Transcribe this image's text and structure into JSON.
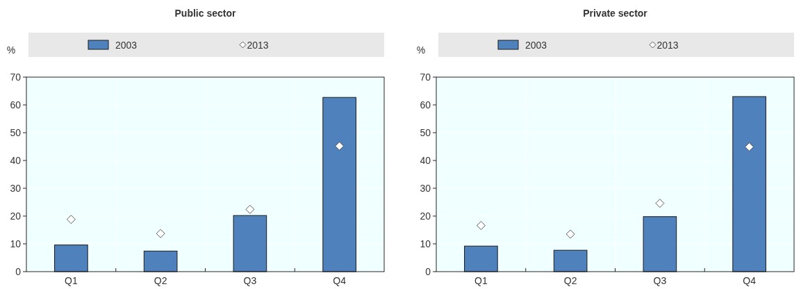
{
  "chart_data": [
    {
      "type": "bar",
      "title": "Public sector",
      "ylabel": "%",
      "categories": [
        "Q1",
        "Q2",
        "Q3",
        "Q4"
      ],
      "ylim": [
        0,
        70
      ],
      "yticks": [
        0,
        10,
        20,
        30,
        40,
        50,
        60,
        70
      ],
      "grid": true,
      "legend": "top",
      "series": [
        {
          "name": "2003",
          "color": "#4f81bd",
          "values": [
            9.6,
            7.4,
            20.2,
            62.7
          ]
        },
        {
          "name": "2013",
          "type": "scatter",
          "marker": "diamond",
          "color": "#ffffff",
          "values": [
            18.8,
            13.7,
            22.4,
            45.2
          ]
        }
      ]
    },
    {
      "type": "bar",
      "title": "Private sector",
      "ylabel": "%",
      "categories": [
        "Q1",
        "Q2",
        "Q3",
        "Q4"
      ],
      "ylim": [
        0,
        70
      ],
      "yticks": [
        0,
        10,
        20,
        30,
        40,
        50,
        60,
        70
      ],
      "grid": true,
      "legend": "top",
      "series": [
        {
          "name": "2003",
          "color": "#4f81bd",
          "values": [
            9.2,
            7.7,
            19.8,
            63.0
          ]
        },
        {
          "name": "2013",
          "type": "scatter",
          "marker": "diamond",
          "color": "#ffffff",
          "values": [
            16.6,
            13.5,
            24.6,
            44.9
          ]
        }
      ]
    }
  ]
}
